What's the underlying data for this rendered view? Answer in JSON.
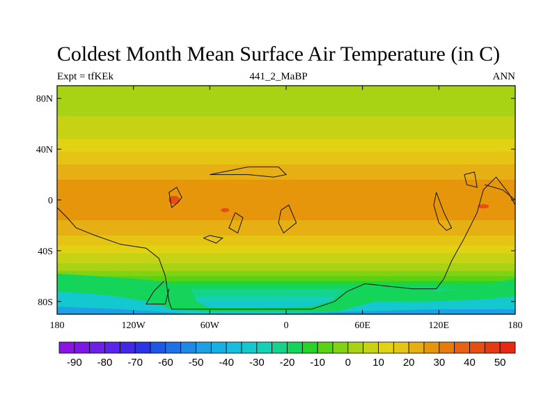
{
  "chart_data": {
    "type": "heatmap",
    "title": "Coldest Month Mean Surface Air Temperature (in C)",
    "subtitle_left": "Expt = tfKEk",
    "subtitle_center": "441_2_MaBP",
    "subtitle_right": "ANN",
    "x_ticks": [
      {
        "value": -180,
        "label": "180"
      },
      {
        "value": -120,
        "label": "120W"
      },
      {
        "value": -60,
        "label": "60W"
      },
      {
        "value": 0,
        "label": "0"
      },
      {
        "value": 60,
        "label": "60E"
      },
      {
        "value": 120,
        "label": "120E"
      },
      {
        "value": 180,
        "label": "180"
      }
    ],
    "y_ticks": [
      {
        "value": 80,
        "label": "80N"
      },
      {
        "value": 40,
        "label": "40N"
      },
      {
        "value": 0,
        "label": "0"
      },
      {
        "value": -40,
        "label": "40S"
      },
      {
        "value": -80,
        "label": "80S"
      }
    ],
    "xlim": [
      -180,
      180
    ],
    "ylim": [
      -90,
      90
    ],
    "colorbar": {
      "labels": [
        "-90",
        "-80",
        "-70",
        "-60",
        "-50",
        "-40",
        "-30",
        "-20",
        "-10",
        "0",
        "10",
        "20",
        "30",
        "40",
        "50"
      ],
      "label_values": [
        -90,
        -80,
        -70,
        -60,
        -50,
        -40,
        -30,
        -20,
        -10,
        0,
        10,
        20,
        30,
        40,
        50
      ],
      "min": -95,
      "step": 5,
      "colors": [
        "#8a14e6",
        "#7b18e8",
        "#6d1ee9",
        "#5a24ea",
        "#4028e6",
        "#2a34e6",
        "#1e56e6",
        "#1e72e6",
        "#1e8ae6",
        "#1ea0e6",
        "#14b0e6",
        "#14bedc",
        "#14c8d0",
        "#14d0b4",
        "#14d48c",
        "#14d45a",
        "#28d228",
        "#5ad214",
        "#82d214",
        "#a8d214",
        "#c8d214",
        "#e2d214",
        "#e6c414",
        "#e6b014",
        "#e6960a",
        "#e67a0a",
        "#e66214",
        "#e64e14",
        "#e63a14",
        "#e62814"
      ]
    },
    "temperature_profile": {
      "lat": [
        -90,
        -80,
        -70,
        -60,
        -50,
        -40,
        -30,
        -20,
        -10,
        0,
        10,
        20,
        30,
        40,
        50,
        60,
        70,
        80,
        90
      ],
      "value": [
        -40,
        -30,
        -20,
        -5,
        5,
        12,
        19,
        24,
        27,
        28,
        27,
        24,
        19,
        14,
        9,
        6,
        4,
        2,
        1
      ]
    }
  }
}
